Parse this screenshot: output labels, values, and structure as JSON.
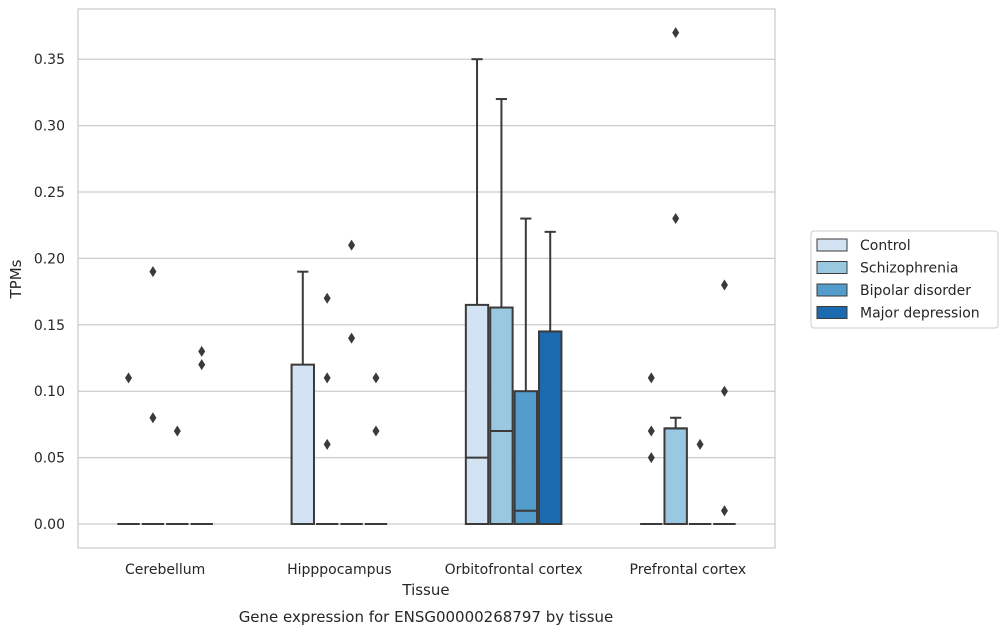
{
  "chart_data": {
    "type": "box",
    "title": "Gene expression for ENSG00000268797 by tissue",
    "xlabel": "Tissue",
    "ylabel": "TPMs",
    "ylim": [
      -0.018,
      0.388
    ],
    "yticks": [
      "0.00",
      "0.05",
      "0.10",
      "0.15",
      "0.20",
      "0.25",
      "0.30",
      "0.35"
    ],
    "ytick_values": [
      0,
      0.05,
      0.1,
      0.15,
      0.2,
      0.25,
      0.3,
      0.35
    ],
    "grid": "horizontal",
    "legend_position": "right",
    "categories": [
      "Cerebellum",
      "Hipppocampus",
      "Orbitofrontal cortex",
      "Prefrontal cortex"
    ],
    "series": [
      {
        "name": "Control",
        "color": "#d3e3f3",
        "boxes": [
          {
            "q1": 0,
            "median": 0,
            "q3": 0,
            "whislo": 0,
            "whishi": 0,
            "fliers": [
              0.11
            ]
          },
          {
            "q1": 0,
            "median": 0,
            "q3": 0.12,
            "whislo": 0,
            "whishi": 0.19,
            "fliers": []
          },
          {
            "q1": 0,
            "median": 0.05,
            "q3": 0.165,
            "whislo": 0,
            "whishi": 0.35,
            "fliers": []
          },
          {
            "q1": 0,
            "median": 0,
            "q3": 0,
            "whislo": 0,
            "whishi": 0,
            "fliers": [
              0.11,
              0.07,
              0.05
            ]
          }
        ]
      },
      {
        "name": "Schizophrenia",
        "color": "#9ac8e0",
        "boxes": [
          {
            "q1": 0,
            "median": 0,
            "q3": 0,
            "whislo": 0,
            "whishi": 0,
            "fliers": [
              0.19,
              0.08
            ]
          },
          {
            "q1": 0,
            "median": 0,
            "q3": 0,
            "whislo": 0,
            "whishi": 0,
            "fliers": [
              0.17,
              0.11,
              0.06
            ]
          },
          {
            "q1": 0,
            "median": 0.07,
            "q3": 0.163,
            "whislo": 0,
            "whishi": 0.32,
            "fliers": []
          },
          {
            "q1": 0,
            "median": 0.072,
            "q3": 0.072,
            "whislo": 0,
            "whishi": 0.08,
            "fliers": [
              0.37,
              0.23
            ]
          }
        ]
      },
      {
        "name": "Bipolar disorder",
        "color": "#529dcc",
        "boxes": [
          {
            "q1": 0,
            "median": 0,
            "q3": 0,
            "whislo": 0,
            "whishi": 0,
            "fliers": [
              0.07
            ]
          },
          {
            "q1": 0,
            "median": 0,
            "q3": 0,
            "whislo": 0,
            "whishi": 0,
            "fliers": [
              0.21,
              0.14
            ]
          },
          {
            "q1": 0,
            "median": 0.01,
            "q3": 0.1,
            "whislo": 0,
            "whishi": 0.23,
            "fliers": []
          },
          {
            "q1": 0,
            "median": 0,
            "q3": 0,
            "whislo": 0,
            "whishi": 0,
            "fliers": [
              0.06
            ]
          }
        ]
      },
      {
        "name": "Major depression",
        "color": "#1c6aaf",
        "boxes": [
          {
            "q1": 0,
            "median": 0,
            "q3": 0,
            "whislo": 0,
            "whishi": 0,
            "fliers": [
              0.13,
              0.12
            ]
          },
          {
            "q1": 0,
            "median": 0,
            "q3": 0,
            "whislo": 0,
            "whishi": 0,
            "fliers": [
              0.11,
              0.07
            ]
          },
          {
            "q1": 0,
            "median": 0,
            "q3": 0.145,
            "whislo": 0,
            "whishi": 0.22,
            "fliers": []
          },
          {
            "q1": 0,
            "median": 0,
            "q3": 0,
            "whislo": 0,
            "whishi": 0,
            "fliers": [
              0.18,
              0.1,
              0.01
            ]
          }
        ]
      }
    ]
  }
}
